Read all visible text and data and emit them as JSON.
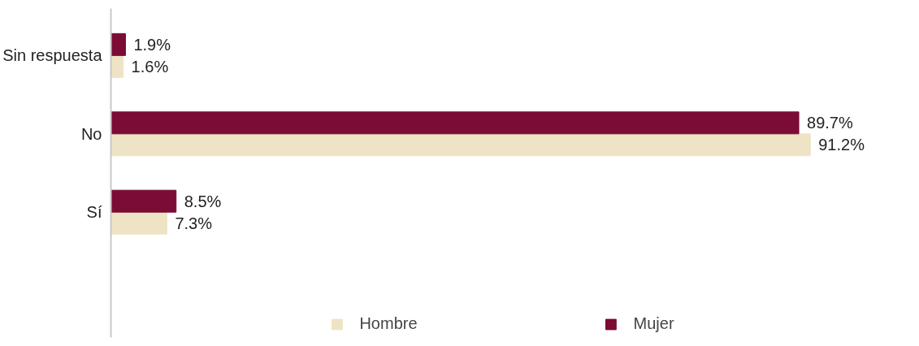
{
  "chart_data": {
    "type": "bar",
    "orientation": "horizontal",
    "categories": [
      "Sin respuesta",
      "No",
      "Sí"
    ],
    "series": [
      {
        "name": "Hombre",
        "color": "#eee3c4",
        "values": [
          1.6,
          91.2,
          7.3
        ],
        "value_labels": [
          "1.6%",
          "91.2%",
          "7.3%"
        ]
      },
      {
        "name": "Mujer",
        "color": "#7b0c35",
        "values": [
          1.9,
          89.7,
          8.5
        ],
        "value_labels": [
          "1.9%",
          "89.7%",
          "8.5%"
        ]
      }
    ],
    "legend": "bottom",
    "grid": false,
    "tick_labels": "y"
  }
}
